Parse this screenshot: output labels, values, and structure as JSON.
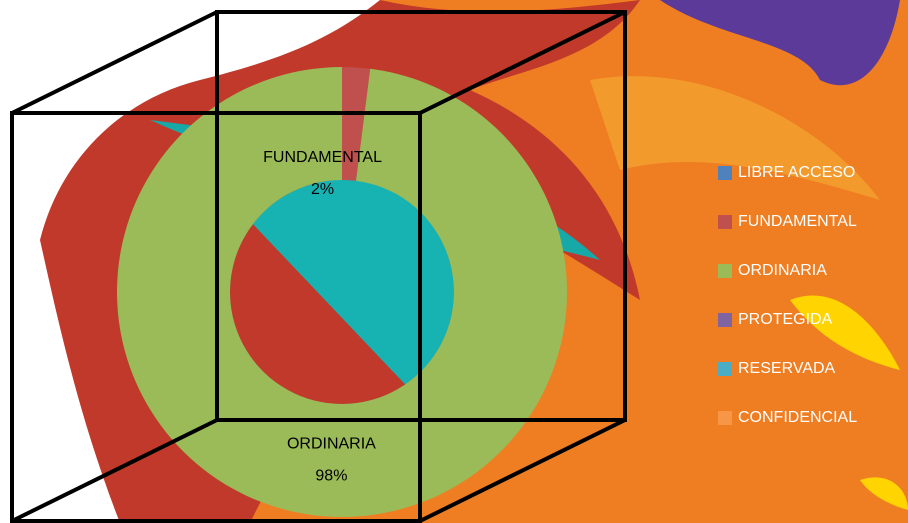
{
  "chart_data": {
    "type": "donut",
    "categories": [
      "LIBRE ACCESO",
      "FUNDAMENTAL",
      "ORDINARIA",
      "PROTEGIDA",
      "RESERVADA",
      "CONFIDENCIAL"
    ],
    "values": [
      0,
      2,
      98,
      0,
      0,
      0
    ],
    "value_labels": [
      null,
      "2%",
      "98%",
      null,
      null,
      null
    ],
    "colors": [
      "#4f81bd",
      "#c0504d",
      "#9bbb59",
      "#8064a2",
      "#4bacc6",
      "#f79646"
    ],
    "legend": "right"
  }
}
